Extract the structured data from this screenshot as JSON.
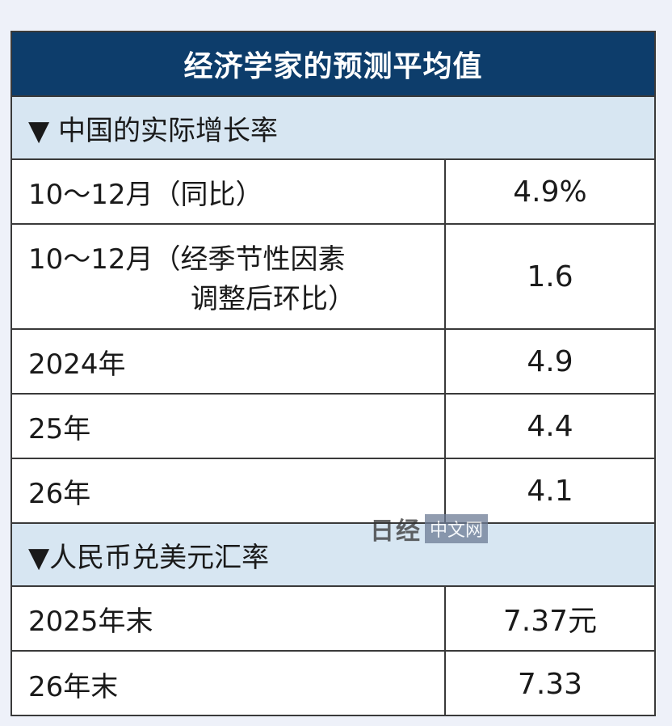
{
  "title": "经济学家的预测平均值",
  "section1": {
    "label": "▼ 中国的实际增长率",
    "rows": [
      {
        "label": "10～12月（同比）",
        "value": "4.9%"
      },
      {
        "label_line1": "10～12月（经季节性因素",
        "label_line2": "调整后环比）",
        "value": "1.6"
      },
      {
        "label": "2024年",
        "value": "4.9"
      },
      {
        "label": "25年",
        "value": "4.4"
      },
      {
        "label": "26年",
        "value": "4.1"
      }
    ]
  },
  "section2": {
    "label": "▼人民币兑美元汇率",
    "rows": [
      {
        "label": "2025年末",
        "value": "7.37元"
      },
      {
        "label": "26年末",
        "value": "7.33"
      }
    ]
  },
  "watermark": {
    "logo": "日经",
    "text": "中文网"
  },
  "colors": {
    "header_bg": "#0d3d6b",
    "section_bg": "#d7e6f2",
    "page_bg": "#eef1f9"
  }
}
